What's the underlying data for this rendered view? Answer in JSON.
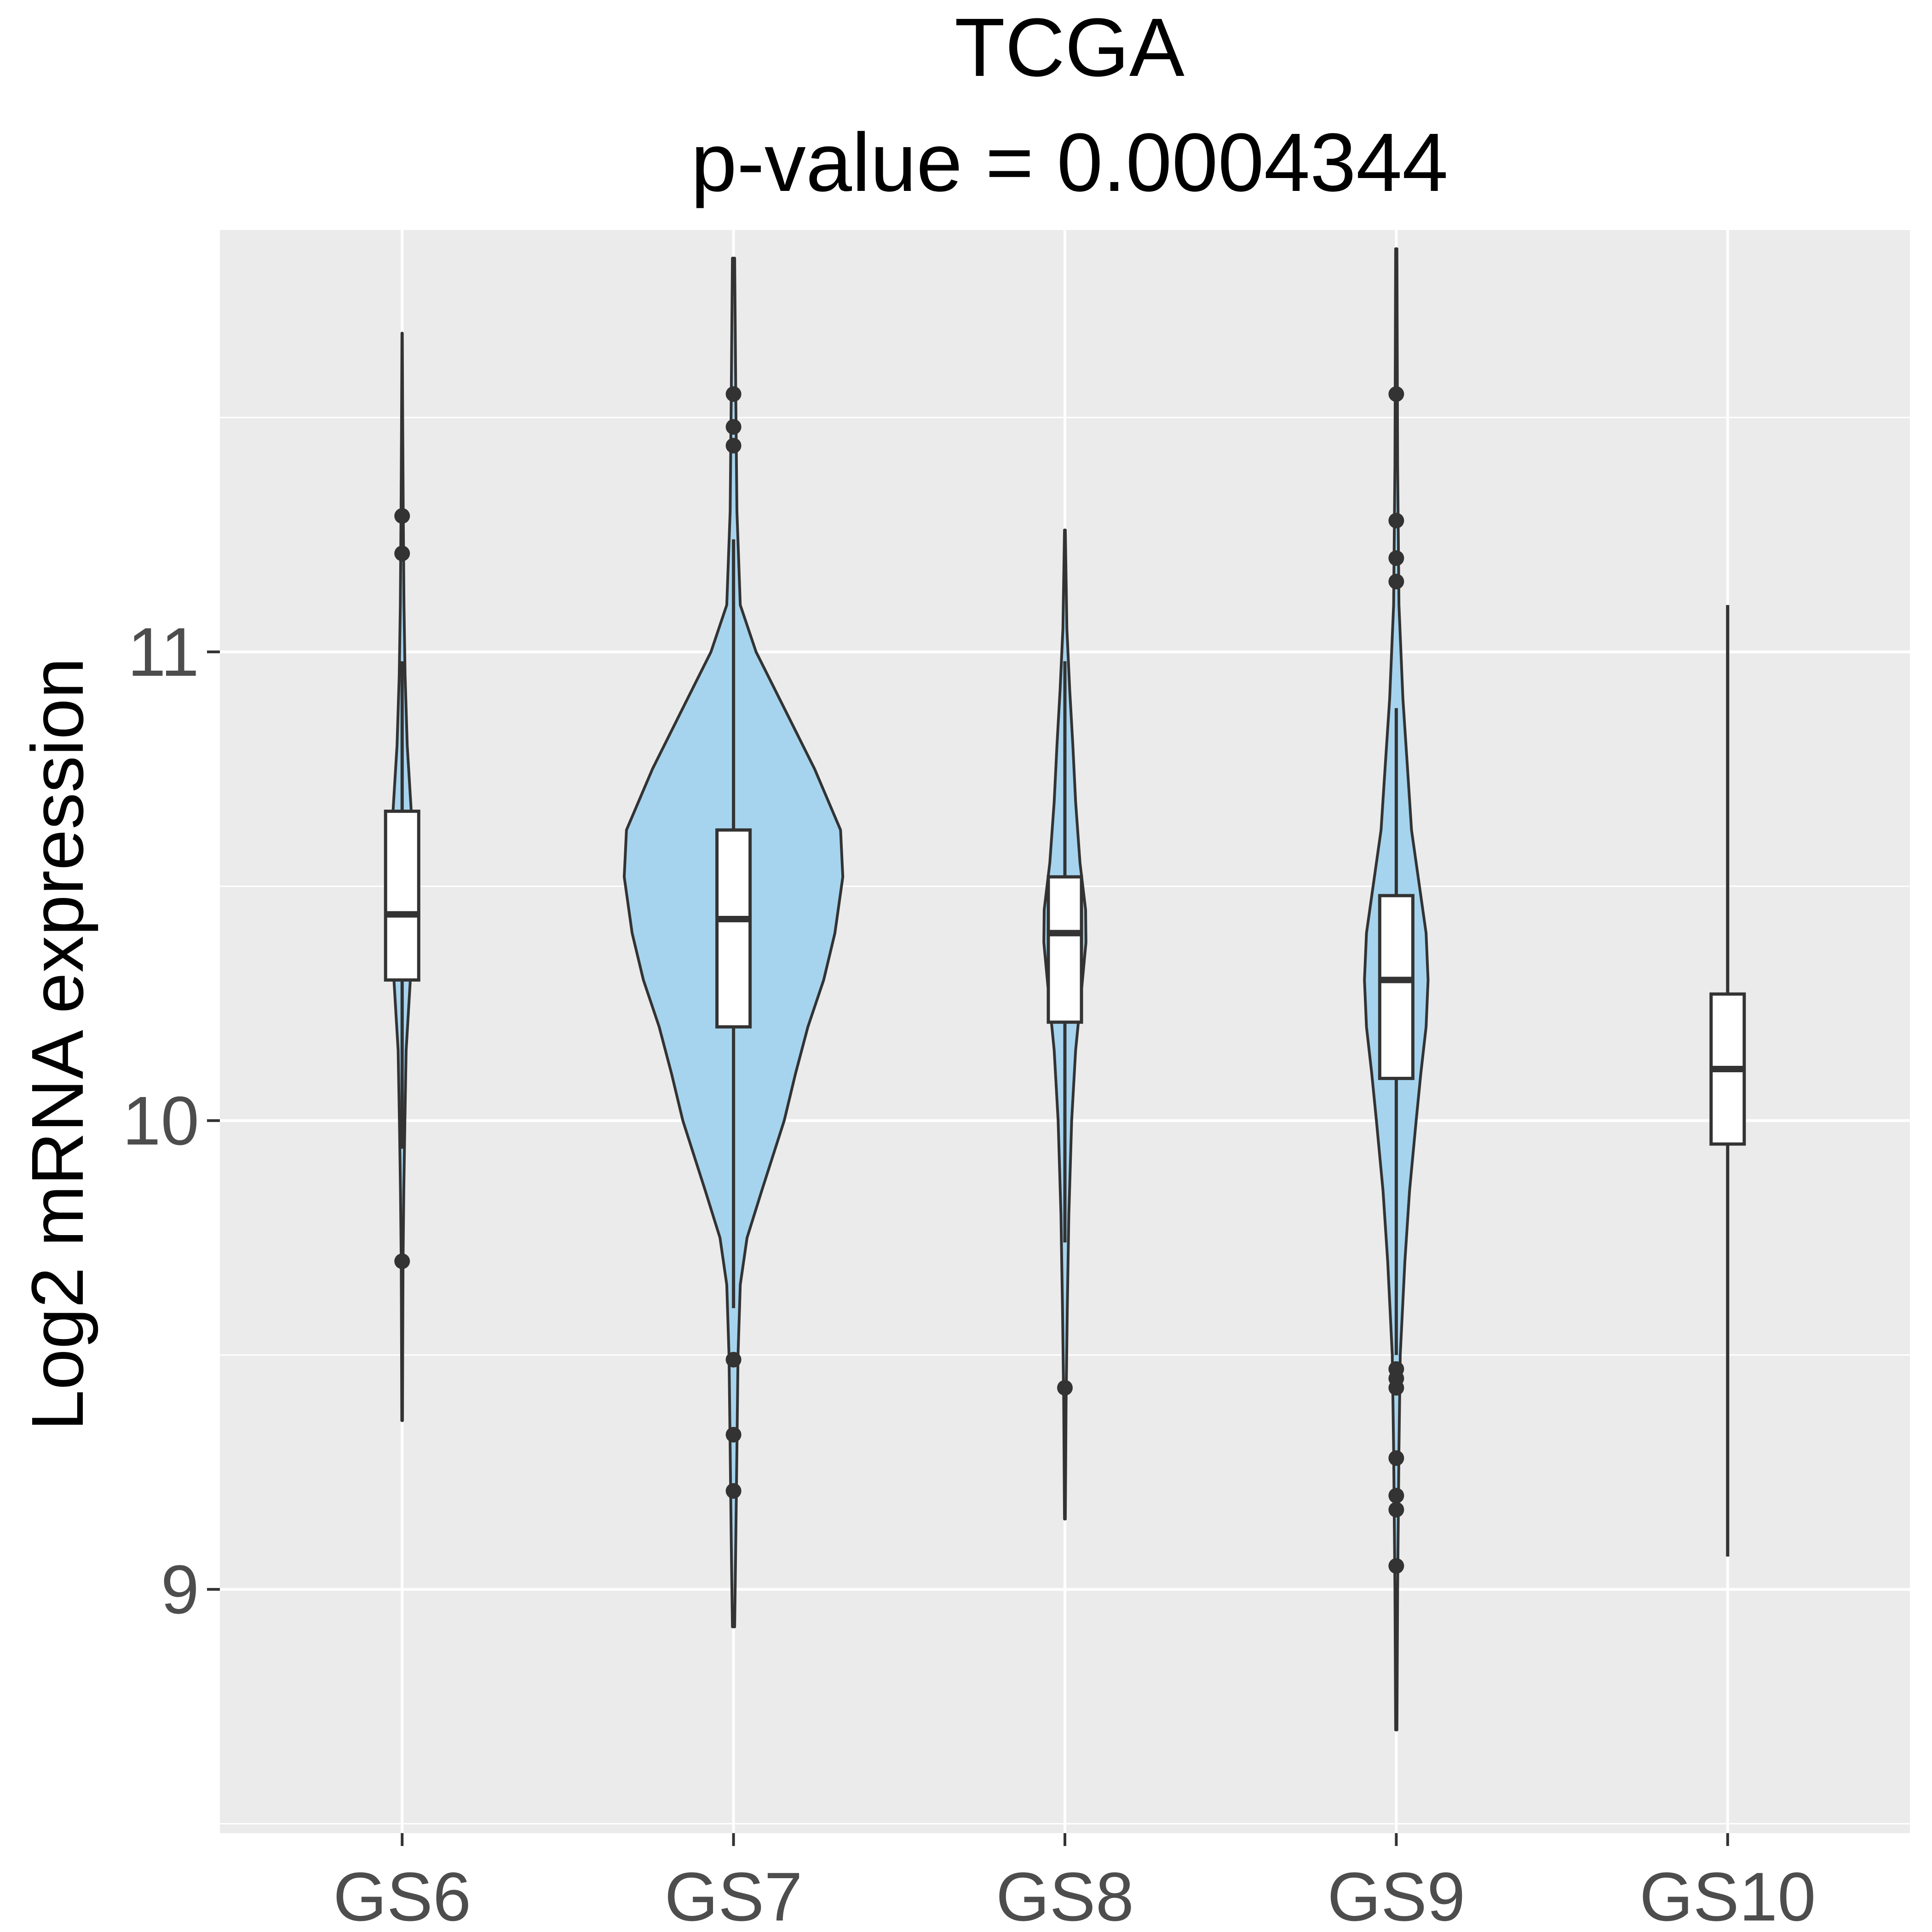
{
  "chart_data": {
    "type": "violin",
    "title": "TCGA",
    "subtitle": "p-value = 0.0004344",
    "xlabel": "",
    "ylabel": "Log2 mRNA expression",
    "ylim": [
      8.48,
      11.9
    ],
    "yticks": [
      9,
      10,
      11
    ],
    "ytick_labels": [
      "9",
      "10",
      "11"
    ],
    "categories": [
      "GS6",
      "GS7",
      "GS8",
      "GS9",
      "GS10"
    ],
    "grid": true,
    "legend": "none",
    "colors": {
      "panel_background": "#ebebeb",
      "grid_line": "#ffffff",
      "violin_fill": "#a6d4ee",
      "outline": "#333333",
      "box_fill": "#ffffff",
      "tick_label": "#4d4d4d",
      "title": "#000000"
    },
    "groups": [
      {
        "category": "GS6",
        "min": 9.36,
        "max": 11.68,
        "q1": 10.3,
        "median": 10.44,
        "q3": 10.66,
        "whisker_low": 9.94,
        "whisker_high": 10.98,
        "outliers": [
          11.29,
          11.21,
          9.7
        ],
        "violin_width": 0.11,
        "density": [
          [
            9.36,
            0.02
          ],
          [
            9.5,
            0.03
          ],
          [
            9.7,
            0.05
          ],
          [
            9.85,
            0.09
          ],
          [
            10.0,
            0.15
          ],
          [
            10.15,
            0.22
          ],
          [
            10.3,
            0.45
          ],
          [
            10.35,
            0.55
          ],
          [
            10.44,
            0.6
          ],
          [
            10.55,
            0.55
          ],
          [
            10.66,
            0.5
          ],
          [
            10.8,
            0.28
          ],
          [
            10.95,
            0.16
          ],
          [
            11.1,
            0.1
          ],
          [
            11.3,
            0.06
          ],
          [
            11.5,
            0.03
          ],
          [
            11.68,
            0.01
          ]
        ]
      },
      {
        "category": "GS7",
        "min": 8.92,
        "max": 11.84,
        "q1": 10.2,
        "median": 10.43,
        "q3": 10.62,
        "whisker_low": 9.6,
        "whisker_high": 11.24,
        "outliers": [
          11.55,
          11.48,
          11.44,
          9.49,
          9.33,
          9.21
        ],
        "violin_width": 0.68,
        "density": [
          [
            8.92,
            0.01
          ],
          [
            9.1,
            0.02
          ],
          [
            9.3,
            0.03
          ],
          [
            9.5,
            0.04
          ],
          [
            9.65,
            0.06
          ],
          [
            9.75,
            0.12
          ],
          [
            9.85,
            0.25
          ],
          [
            10.0,
            0.45
          ],
          [
            10.1,
            0.55
          ],
          [
            10.2,
            0.66
          ],
          [
            10.3,
            0.8
          ],
          [
            10.4,
            0.9
          ],
          [
            10.52,
            0.97
          ],
          [
            10.62,
            0.95
          ],
          [
            10.75,
            0.72
          ],
          [
            10.88,
            0.45
          ],
          [
            11.0,
            0.2
          ],
          [
            11.1,
            0.06
          ],
          [
            11.3,
            0.03
          ],
          [
            11.55,
            0.02
          ],
          [
            11.84,
            0.01
          ]
        ]
      },
      {
        "category": "GS8",
        "min": 9.15,
        "max": 11.26,
        "q1": 10.21,
        "median": 10.4,
        "q3": 10.52,
        "whisker_low": 9.74,
        "whisker_high": 10.98,
        "outliers": [
          9.43
        ],
        "violin_width": 0.24,
        "density": [
          [
            9.15,
            0.01
          ],
          [
            9.4,
            0.03
          ],
          [
            9.6,
            0.06
          ],
          [
            9.8,
            0.1
          ],
          [
            10.0,
            0.17
          ],
          [
            10.15,
            0.27
          ],
          [
            10.28,
            0.42
          ],
          [
            10.38,
            0.53
          ],
          [
            10.45,
            0.52
          ],
          [
            10.55,
            0.38
          ],
          [
            10.68,
            0.27
          ],
          [
            10.8,
            0.2
          ],
          [
            10.92,
            0.12
          ],
          [
            11.05,
            0.05
          ],
          [
            11.26,
            0.01
          ]
        ]
      },
      {
        "category": "GS9",
        "min": 8.7,
        "max": 11.86,
        "q1": 10.09,
        "median": 10.3,
        "q3": 10.48,
        "whisker_low": 9.5,
        "whisker_high": 10.88,
        "outliers": [
          11.55,
          11.28,
          11.2,
          11.15,
          9.47,
          9.45,
          9.43,
          9.28,
          9.2,
          9.17,
          9.05
        ],
        "violin_width": 0.4,
        "density": [
          [
            8.7,
            0.01
          ],
          [
            9.0,
            0.02
          ],
          [
            9.3,
            0.04
          ],
          [
            9.5,
            0.06
          ],
          [
            9.7,
            0.13
          ],
          [
            9.85,
            0.2
          ],
          [
            10.0,
            0.3
          ],
          [
            10.1,
            0.37
          ],
          [
            10.2,
            0.45
          ],
          [
            10.3,
            0.48
          ],
          [
            10.4,
            0.45
          ],
          [
            10.5,
            0.35
          ],
          [
            10.62,
            0.23
          ],
          [
            10.75,
            0.17
          ],
          [
            10.9,
            0.1
          ],
          [
            11.1,
            0.04
          ],
          [
            11.4,
            0.02
          ],
          [
            11.86,
            0.01
          ]
        ]
      },
      {
        "category": "GS10",
        "min": 9.07,
        "max": 11.1,
        "q1": 9.95,
        "median": 10.11,
        "q3": 10.27,
        "whisker_low": 9.07,
        "whisker_high": 11.1,
        "outliers": [],
        "violin_width": 0.0,
        "density": []
      }
    ]
  }
}
